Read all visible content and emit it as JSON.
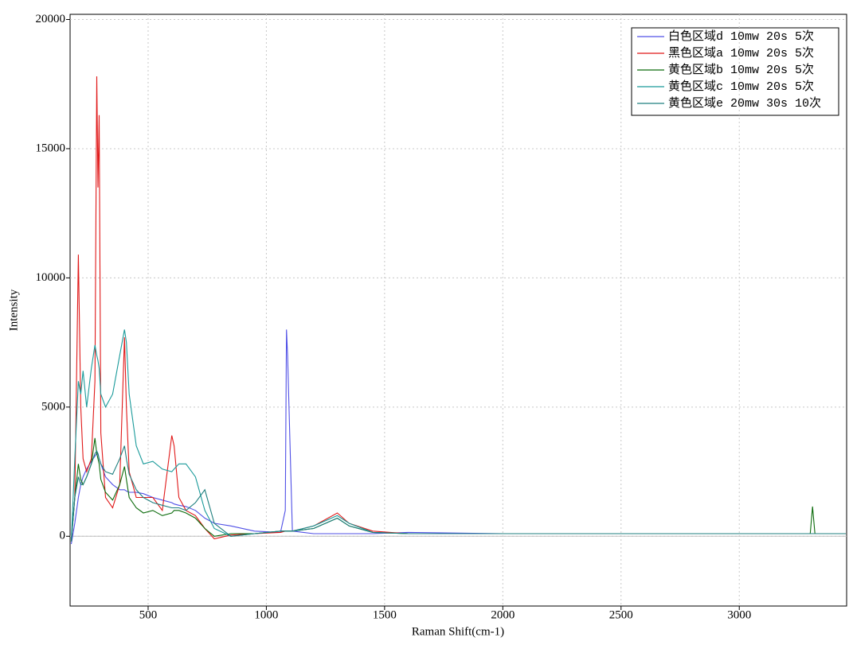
{
  "chart_data": {
    "type": "line",
    "x_label": "Raman Shift(cm-1)",
    "y_label": "Intensity",
    "xlim": [
      170,
      3454
    ],
    "ylim": [
      -2700,
      20200
    ],
    "xticks": [
      500,
      1000,
      1500,
      2000,
      2500,
      3000
    ],
    "yticks": [
      0,
      5000,
      10000,
      15000,
      20000
    ],
    "grid": true,
    "legend": "upper right",
    "x": [
      175,
      190,
      205,
      215,
      225,
      240,
      260,
      275,
      283,
      288,
      293,
      300,
      320,
      350,
      380,
      400,
      408,
      420,
      450,
      480,
      520,
      560,
      600,
      610,
      630,
      660,
      700,
      740,
      780,
      850,
      950,
      1060,
      1080,
      1085,
      1090,
      1110,
      1200,
      1300,
      1350,
      1450,
      1600,
      2000,
      2500,
      3000,
      3300,
      3310,
      3320,
      3450
    ],
    "series": [
      {
        "name": "白色区域d  10mw 20s 5次",
        "color": "#5050e6",
        "values": [
          -300,
          500,
          1500,
          2000,
          2300,
          2600,
          2900,
          3100,
          3200,
          3200,
          3000,
          2800,
          2300,
          2000,
          1800,
          1800,
          1750,
          1700,
          1700,
          1650,
          1500,
          1400,
          1300,
          1250,
          1200,
          1150,
          1000,
          700,
          500,
          400,
          200,
          150,
          1000,
          8000,
          7000,
          200,
          100,
          100,
          100,
          100,
          150,
          100,
          100,
          100,
          100,
          100,
          100,
          100
        ]
      },
      {
        "name": "黑色区域a  10mw 20s 5次",
        "color": "#e01818",
        "values": [
          -200,
          1500,
          10900,
          5000,
          3000,
          2500,
          3000,
          6000,
          17800,
          13500,
          16300,
          4000,
          1500,
          1100,
          2000,
          7700,
          5000,
          2500,
          1500,
          1500,
          1500,
          1000,
          3900,
          3500,
          1500,
          1000,
          800,
          300,
          -100,
          50,
          100,
          150,
          200,
          200,
          200,
          200,
          400,
          900,
          500,
          200,
          100,
          100,
          100,
          100,
          100,
          100,
          100,
          100
        ]
      },
      {
        "name": "黄色区域b  10mw 20s 5次",
        "color": "#0a6a0a",
        "values": [
          -200,
          1500,
          2800,
          2200,
          2000,
          2300,
          2800,
          3800,
          3200,
          3000,
          2800,
          2200,
          1700,
          1400,
          2000,
          2700,
          2200,
          1500,
          1100,
          900,
          1000,
          800,
          900,
          1000,
          1000,
          900,
          700,
          300,
          0,
          100,
          100,
          200,
          200,
          200,
          200,
          200,
          300,
          700,
          400,
          150,
          100,
          100,
          100,
          100,
          100,
          1150,
          100,
          100
        ]
      },
      {
        "name": "黄色区域c  10mw 20s 5次",
        "color": "#1a9a9a",
        "values": [
          -200,
          3000,
          6000,
          5500,
          6400,
          5000,
          6500,
          7400,
          7000,
          6800,
          6500,
          5500,
          5000,
          5500,
          7000,
          8000,
          7500,
          5500,
          3500,
          2800,
          2900,
          2600,
          2500,
          2600,
          2800,
          2800,
          2300,
          1000,
          300,
          0,
          100,
          200,
          200,
          200,
          200,
          200,
          400,
          800,
          500,
          150,
          100,
          100,
          100,
          100,
          100,
          100,
          100,
          100
        ]
      },
      {
        "name": "黄色区域e 20mw 30s 10次",
        "color": "#1f7f7f",
        "values": [
          -200,
          1500,
          2300,
          2000,
          2000,
          2300,
          2800,
          3200,
          3300,
          3200,
          3000,
          2800,
          2500,
          2400,
          3000,
          3500,
          3000,
          2400,
          1800,
          1500,
          1300,
          1200,
          1100,
          1100,
          1100,
          1000,
          1300,
          1800,
          500,
          0,
          100,
          200,
          200,
          200,
          200,
          200,
          300,
          700,
          400,
          150,
          100,
          100,
          100,
          100,
          100,
          100,
          100,
          100
        ]
      }
    ]
  }
}
